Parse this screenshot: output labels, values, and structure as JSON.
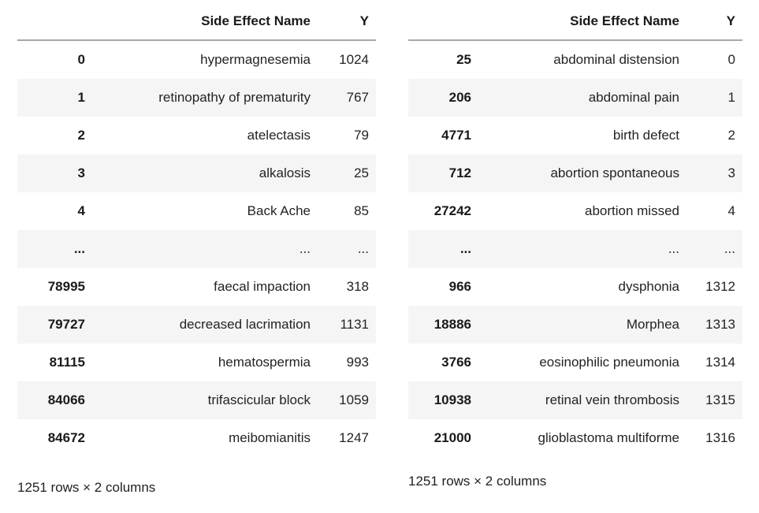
{
  "colors": {
    "row_stripe": "#f5f5f5",
    "header_rule": "#a8a8a8",
    "text": "#212121",
    "background": "#ffffff"
  },
  "tables": [
    {
      "id": "left-dataframe",
      "columns": [
        "Side Effect Name",
        "Y"
      ],
      "index_header": "",
      "rows": [
        {
          "index": "0",
          "name": "hypermagnesemia",
          "y": "1024"
        },
        {
          "index": "1",
          "name": "retinopathy of prematurity",
          "y": "767"
        },
        {
          "index": "2",
          "name": "atelectasis",
          "y": "79"
        },
        {
          "index": "3",
          "name": "alkalosis",
          "y": "25"
        },
        {
          "index": "4",
          "name": "Back Ache",
          "y": "85"
        },
        {
          "index": "...",
          "name": "...",
          "y": "..."
        },
        {
          "index": "78995",
          "name": "faecal impaction",
          "y": "318"
        },
        {
          "index": "79727",
          "name": "decreased lacrimation",
          "y": "1131"
        },
        {
          "index": "81115",
          "name": "hematospermia",
          "y": "993"
        },
        {
          "index": "84066",
          "name": "trifascicular block",
          "y": "1059"
        },
        {
          "index": "84672",
          "name": "meibomianitis",
          "y": "1247"
        }
      ],
      "footer": "1251 rows × 2 columns"
    },
    {
      "id": "right-dataframe",
      "columns": [
        "Side Effect Name",
        "Y"
      ],
      "index_header": "",
      "rows": [
        {
          "index": "25",
          "name": "abdominal distension",
          "y": "0"
        },
        {
          "index": "206",
          "name": "abdominal pain",
          "y": "1"
        },
        {
          "index": "4771",
          "name": "birth defect",
          "y": "2"
        },
        {
          "index": "712",
          "name": "abortion spontaneous",
          "y": "3"
        },
        {
          "index": "27242",
          "name": "abortion missed",
          "y": "4"
        },
        {
          "index": "...",
          "name": "...",
          "y": "..."
        },
        {
          "index": "966",
          "name": "dysphonia",
          "y": "1312"
        },
        {
          "index": "18886",
          "name": "Morphea",
          "y": "1313"
        },
        {
          "index": "3766",
          "name": "eosinophilic pneumonia",
          "y": "1314"
        },
        {
          "index": "10938",
          "name": "retinal vein thrombosis",
          "y": "1315"
        },
        {
          "index": "21000",
          "name": "glioblastoma multiforme",
          "y": "1316"
        }
      ],
      "footer": "1251 rows × 2 columns"
    }
  ]
}
